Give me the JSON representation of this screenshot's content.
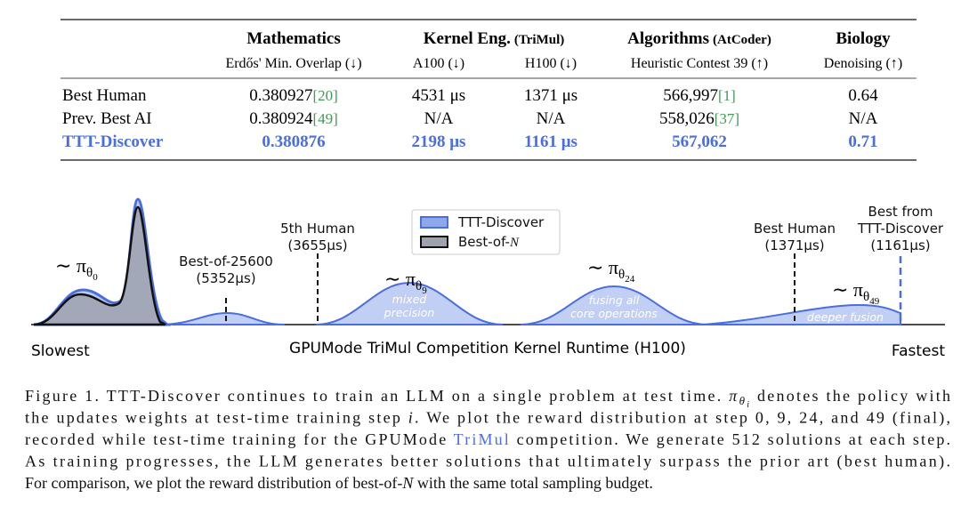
{
  "table": {
    "groups": [
      {
        "title": "Mathematics"
      },
      {
        "title": "Kernel Eng.",
        "note": "(TriMul)"
      },
      {
        "title": "Algorithms",
        "note": "(AtCoder)"
      },
      {
        "title": "Biology"
      }
    ],
    "subheaders": [
      "Erdős' Min. Overlap (↓)",
      "A100 (↓)",
      "H100 (↓)",
      "Heuristic Contest 39 (↑)",
      "Denoising (↑)"
    ],
    "rows": [
      {
        "label": "Best Human",
        "cells": [
          {
            "text": "0.380927",
            "ref": "[20]"
          },
          {
            "text": "4531 μs"
          },
          {
            "text": "1371 μs"
          },
          {
            "text": "566,997",
            "ref": "[1]"
          },
          {
            "text": "0.64"
          }
        ]
      },
      {
        "label": "Prev. Best AI",
        "cells": [
          {
            "text": "0.380924",
            "ref": "[49]"
          },
          {
            "text": "N/A"
          },
          {
            "text": "N/A"
          },
          {
            "text": "558,026",
            "ref": "[37]"
          },
          {
            "text": "N/A"
          }
        ]
      },
      {
        "label": "TTT-Discover",
        "cells": [
          {
            "text": "0.380876"
          },
          {
            "text": "2198 μs"
          },
          {
            "text": "1161 μs"
          },
          {
            "text": "567,062"
          },
          {
            "text": "0.71"
          }
        ]
      }
    ]
  },
  "figure": {
    "legend": [
      {
        "label": "TTT-Discover"
      },
      {
        "label": "Best-of-",
        "italic": "N"
      }
    ],
    "policies": [
      {
        "prefix": "∼ π",
        "sub": "θ",
        "index": "0"
      },
      {
        "prefix": "∼ π",
        "sub": "θ",
        "index": "9"
      },
      {
        "prefix": "∼ π",
        "sub": "θ",
        "index": "24"
      },
      {
        "prefix": "∼ π",
        "sub": "θ",
        "index": "49"
      }
    ],
    "markers": [
      {
        "lines": [
          "Best-of-25600",
          "(5352μs)"
        ]
      },
      {
        "lines": [
          "5th Human",
          "(3655μs)"
        ]
      },
      {
        "lines": [
          "Best Human",
          "(1371μs)"
        ]
      },
      {
        "lines": [
          "Best from",
          "TTT-Discover",
          "(1161μs)"
        ]
      }
    ],
    "annotations": [
      [
        "mixed",
        "precision"
      ],
      [
        "fusing all",
        "core operations"
      ],
      [
        "deeper fusion"
      ]
    ],
    "x_left": "Slowest",
    "x_title": "GPUMode TriMul Competition Kernel Runtime (H100)",
    "x_right": "Fastest"
  },
  "caption": {
    "lines": [
      [
        "Figure 1. TTT-Discover continues to train an LLM on a single problem at test time. ",
        "π",
        "θ",
        "i",
        " denotes the policy with"
      ],
      [
        "the updates weights at test-time training step ",
        "i",
        ". We plot the reward distribution at step 0, 9, 24, and 49 (final),"
      ],
      [
        "recorded while test-time training for the GPUMode ",
        "TriMul",
        " competition. We generate 512 solutions at each step."
      ],
      [
        "As training progresses, the LLM generates better solutions that ultimately surpass the prior art (best human)."
      ],
      [
        "For comparison, we plot the reward distribution of best-of-",
        "N",
        " with the same total sampling budget."
      ]
    ]
  }
}
